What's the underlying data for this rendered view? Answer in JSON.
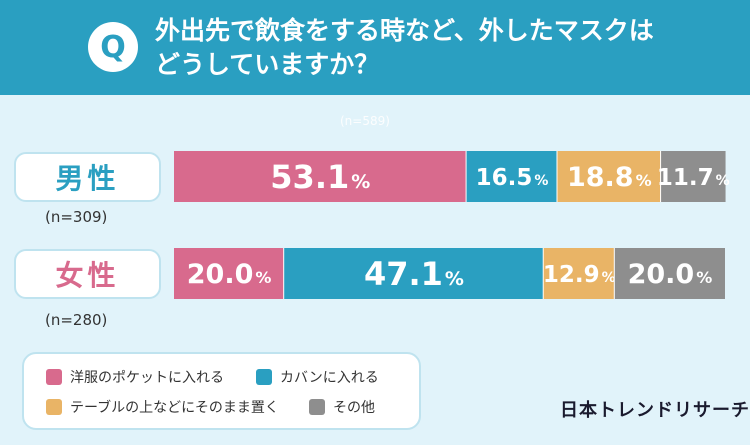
{
  "header": {
    "badge": "Q",
    "question_line1": "外出先で飲食をする時など、外したマスクは",
    "question_line2": "どうしていますか？"
  },
  "sample_note": "(n=589)",
  "brand": "日本トレンドリサーチ",
  "colors": {
    "pocket": "#d86a8d",
    "bag": "#2a9fc1",
    "table": "#e9b466",
    "other": "#8e8e8e"
  },
  "chart_data": {
    "type": "bar",
    "orientation": "horizontal",
    "stacked": true,
    "percent": true,
    "categories": [
      "男性",
      "女性"
    ],
    "counts": [
      "(n=309)",
      "(n=280)"
    ],
    "series": [
      {
        "name": "洋服のポケットに入れる",
        "values": [
          53.1,
          20.0
        ]
      },
      {
        "name": "カバンに入れる",
        "values": [
          16.5,
          47.1
        ]
      },
      {
        "name": "テーブルの上などにそのまま置く",
        "values": [
          18.8,
          12.9
        ]
      },
      {
        "name": "その他",
        "values": [
          11.7,
          20.0
        ]
      }
    ],
    "unit": "%",
    "xlim": [
      0,
      100
    ]
  }
}
